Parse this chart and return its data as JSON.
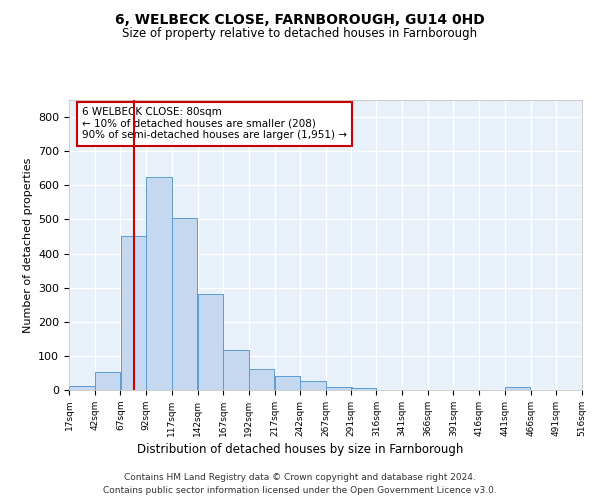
{
  "title1": "6, WELBECK CLOSE, FARNBOROUGH, GU14 0HD",
  "title2": "Size of property relative to detached houses in Farnborough",
  "xlabel": "Distribution of detached houses by size in Farnborough",
  "ylabel": "Number of detached properties",
  "bar_color": "#c5d8f0",
  "bar_edge_color": "#5b9bd5",
  "background_color": "#e8f0fa",
  "grid_color": "#ffffff",
  "vline_color": "#cc0000",
  "vline_x": 80,
  "annotation_text_line1": "6 WELBECK CLOSE: 80sqm",
  "annotation_text_line2": "← 10% of detached houses are smaller (208)",
  "annotation_text_line3": "90% of semi-detached houses are larger (1,951) →",
  "bins": [
    17,
    42,
    67,
    92,
    117,
    142,
    167,
    192,
    217,
    242,
    267,
    291,
    316,
    341,
    366,
    391,
    416,
    441,
    466,
    491,
    516
  ],
  "heights": [
    12,
    52,
    450,
    625,
    503,
    280,
    117,
    62,
    40,
    25,
    10,
    5,
    0,
    0,
    0,
    0,
    0,
    8,
    0,
    0,
    0
  ],
  "ylim": [
    0,
    850
  ],
  "yticks": [
    0,
    100,
    200,
    300,
    400,
    500,
    600,
    700,
    800
  ],
  "footer1": "Contains HM Land Registry data © Crown copyright and database right 2024.",
  "footer2": "Contains public sector information licensed under the Open Government Licence v3.0."
}
